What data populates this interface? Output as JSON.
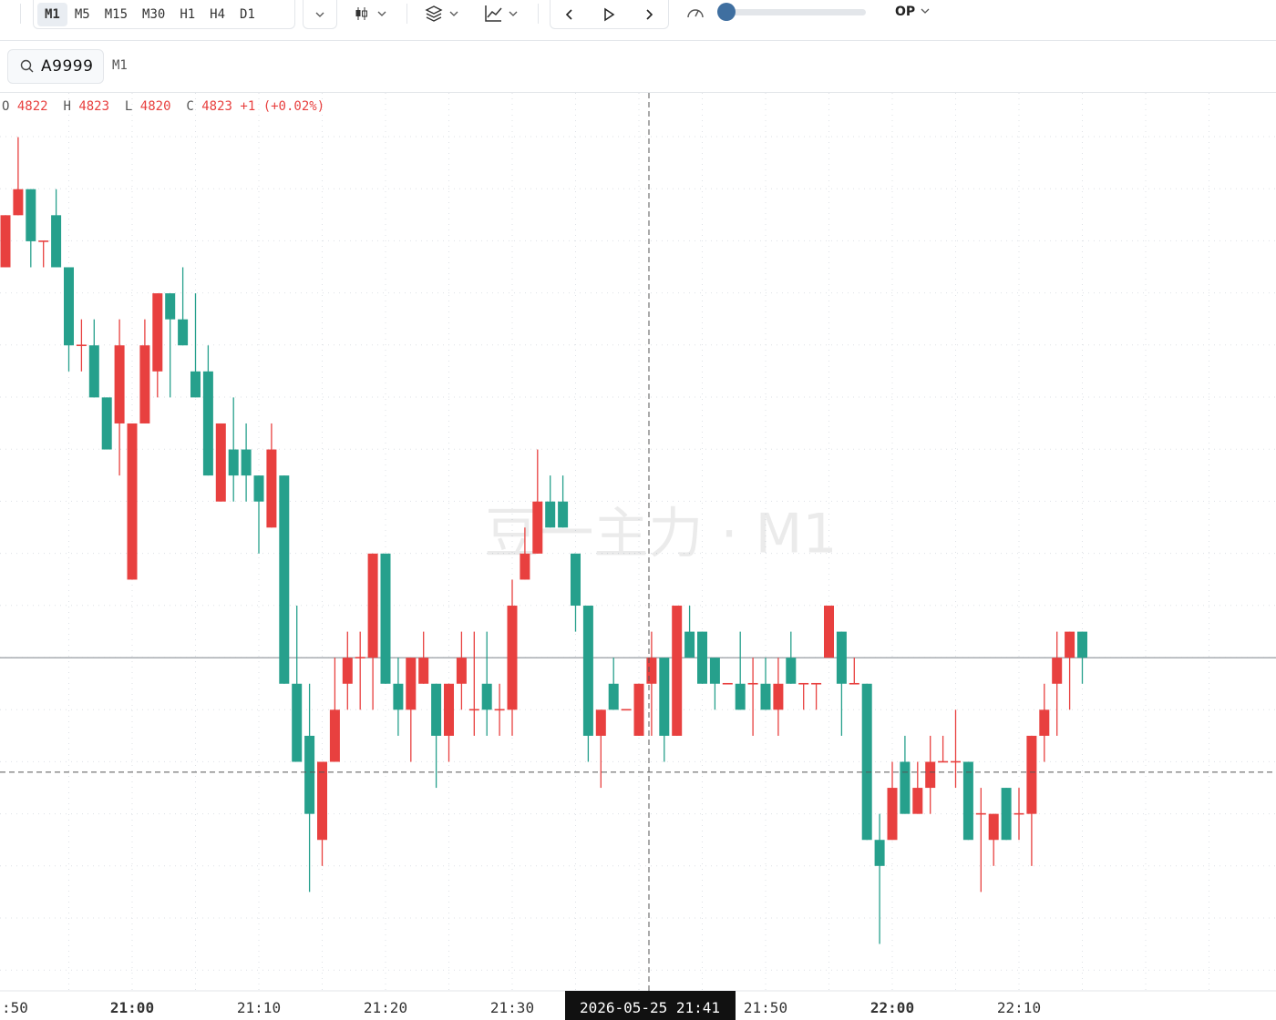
{
  "toolbar": {
    "timeframes": [
      "M1",
      "M5",
      "M15",
      "M30",
      "H1",
      "H4",
      "D1"
    ],
    "mode": "OP"
  },
  "symbol_bar": {
    "symbol": "A9999",
    "period": "M1"
  },
  "ohlc_legend": {
    "labels": [
      "O",
      "H",
      "L",
      "C"
    ],
    "values": [
      4822,
      4823,
      4820,
      4823
    ],
    "change": "+1",
    "change_pct": "(+0.02%)"
  },
  "chart_data": {
    "type": "candlestick",
    "watermark": "豆一主力 · M1",
    "categories": [
      ":50",
      null,
      null,
      null,
      null,
      null,
      null,
      null,
      null,
      null,
      "21:00",
      null,
      null,
      null,
      null,
      null,
      null,
      null,
      null,
      null,
      "21:10",
      null,
      null,
      null,
      null,
      null,
      null,
      null,
      null,
      null,
      "21:20",
      null,
      null,
      null,
      null,
      null,
      null,
      null,
      null,
      null,
      "21:30",
      null,
      null,
      null,
      null,
      null,
      null,
      null,
      null,
      null,
      null,
      null,
      null,
      null,
      null,
      null,
      null,
      null,
      null,
      null,
      "21:50",
      null,
      null,
      null,
      null,
      null,
      null,
      null,
      null,
      null,
      "22:00",
      null,
      null,
      null,
      null,
      null,
      null,
      null,
      null,
      null,
      "22:10",
      null,
      null,
      null,
      null,
      null
    ],
    "open": [
      4837,
      4839,
      4840,
      4838,
      4839,
      4837,
      4834,
      4834,
      4832,
      4831,
      4825,
      4831,
      4833,
      4836,
      4835,
      4833,
      4833,
      4828,
      4830,
      4830,
      4829,
      4827,
      4829,
      4821,
      4819,
      4815,
      4818,
      4821,
      4822,
      4822,
      4826,
      4821,
      4820,
      4821,
      4821,
      4819,
      4821,
      4820,
      4821,
      4820,
      4820,
      4825,
      4826,
      4828,
      4828,
      4826,
      4824,
      4819,
      4821,
      4820,
      4819,
      4821,
      4822,
      4819,
      4823,
      4823,
      4822,
      4821,
      4821,
      4821,
      4821,
      4820,
      4822,
      4821,
      4821,
      4822,
      4823,
      4821,
      4821,
      4815,
      4815,
      4818,
      4816,
      4817,
      4818,
      4818,
      4818,
      4816,
      4815,
      4817,
      4816,
      4816,
      4819,
      4821,
      4822,
      4823
    ],
    "high": [
      4839,
      4842,
      4840,
      4838,
      4840,
      4837,
      4835,
      4835,
      4832,
      4835,
      4831,
      4835,
      4836,
      4836,
      4837,
      4836,
      4834,
      4831,
      4832,
      4831,
      4829,
      4831,
      4829,
      4824,
      4821,
      4818,
      4822,
      4823,
      4823,
      4826,
      4826,
      4822,
      4822,
      4823,
      4821,
      4821,
      4823,
      4823,
      4823,
      4821,
      4825,
      4827,
      4830,
      4829,
      4829,
      4826,
      4824,
      4820,
      4822,
      4820,
      4821,
      4823,
      4822,
      4824,
      4824,
      4823,
      4822,
      4821,
      4823,
      4822,
      4822,
      4822,
      4823,
      4821,
      4821,
      4824,
      4823,
      4822,
      4821,
      4816,
      4818,
      4819,
      4818,
      4819,
      4819,
      4820,
      4818,
      4817,
      4816,
      4817,
      4817,
      4819,
      4821,
      4823,
      4823,
      4823
    ],
    "low": [
      4837,
      4839,
      4837,
      4837,
      4837,
      4833,
      4833,
      4832,
      4830,
      4829,
      4825,
      4831,
      4832,
      4832,
      4834,
      4832,
      4829,
      4828,
      4828,
      4828,
      4826,
      4827,
      4821,
      4818,
      4813,
      4814,
      4818,
      4820,
      4820,
      4820,
      4821,
      4819,
      4818,
      4821,
      4817,
      4818,
      4820,
      4819,
      4819,
      4819,
      4819,
      4825,
      4826,
      4827,
      4827,
      4823,
      4818,
      4817,
      4820,
      4820,
      4819,
      4819,
      4818,
      4819,
      4822,
      4821,
      4820,
      4821,
      4820,
      4819,
      4820,
      4819,
      4821,
      4820,
      4820,
      4822,
      4819,
      4821,
      4815,
      4811,
      4815,
      4816,
      4816,
      4816,
      4818,
      4817,
      4815,
      4813,
      4814,
      4815,
      4815,
      4814,
      4818,
      4819,
      4820,
      4821
    ],
    "close": [
      4839,
      4840,
      4838,
      4838,
      4837,
      4834,
      4834,
      4832,
      4830,
      4834,
      4831,
      4834,
      4836,
      4835,
      4834,
      4832,
      4829,
      4831,
      4829,
      4829,
      4828,
      4830,
      4821,
      4818,
      4816,
      4818,
      4820,
      4822,
      4822,
      4826,
      4821,
      4820,
      4822,
      4822,
      4819,
      4821,
      4822,
      4820,
      4820,
      4820,
      4824,
      4826,
      4828,
      4827,
      4827,
      4824,
      4819,
      4820,
      4820,
      4820,
      4821,
      4822,
      4819,
      4824,
      4822,
      4821,
      4821,
      4821,
      4820,
      4821,
      4820,
      4821,
      4821,
      4821,
      4821,
      4824,
      4821,
      4821,
      4815,
      4814,
      4817,
      4816,
      4817,
      4818,
      4818,
      4818,
      4815,
      4816,
      4816,
      4815,
      4816,
      4819,
      4820,
      4822,
      4823,
      4822
    ],
    "up_color": "#e8403f",
    "down_color": "#26a08c",
    "ylim": [
      4809.2,
      4843.7
    ],
    "grid": true,
    "crosshair": {
      "time_label": "2026-05-25 21:41",
      "price": 4817.6
    }
  }
}
